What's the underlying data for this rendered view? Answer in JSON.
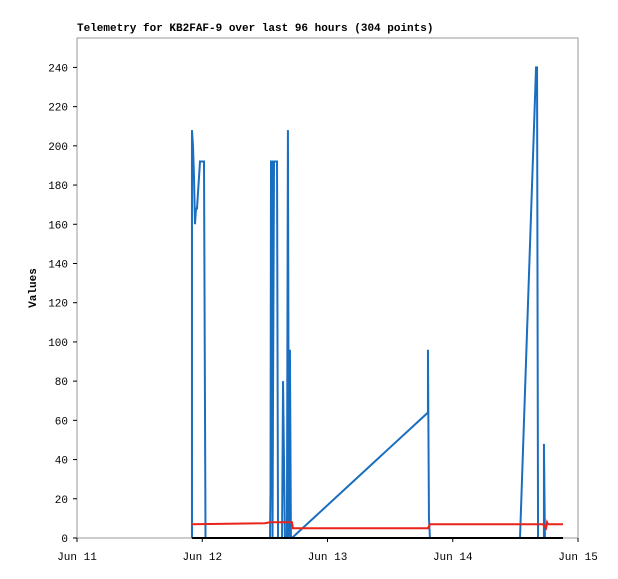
{
  "chart_data": {
    "type": "line",
    "title": "Telemetry for KB2FAF-9 over last 96 hours (304 points)",
    "y_label": "Values",
    "xlim": [
      0,
      4
    ],
    "xticks": [
      {
        "value": 0,
        "label": "Jun 11"
      },
      {
        "value": 1,
        "label": "Jun 12"
      },
      {
        "value": 2,
        "label": "Jun 13"
      },
      {
        "value": 3,
        "label": "Jun 14"
      },
      {
        "value": 4,
        "label": "Jun 15"
      }
    ],
    "ylim": [
      0,
      255
    ],
    "yticks": [
      0,
      20,
      40,
      60,
      80,
      100,
      120,
      140,
      160,
      180,
      200,
      220,
      240
    ],
    "grid": false,
    "series": [
      {
        "color": "#1a6ec0",
        "x": [
          0.918,
          0.918,
          0.926,
          0.934,
          0.942,
          0.95,
          0.958,
          0.982,
          1.014,
          1.02,
          1.026,
          1.541,
          1.545,
          1.549,
          1.557,
          1.561,
          1.565,
          1.573,
          1.597,
          1.605,
          1.637,
          1.645,
          1.66,
          1.676,
          1.684,
          1.692,
          1.7,
          1.708,
          1.716,
          2.802,
          2.802,
          2.81,
          2.818,
          3.537,
          3.665,
          3.673,
          3.681,
          3.728,
          3.728,
          3.736,
          3.88
        ],
        "values": [
          0,
          208,
          200,
          184,
          160,
          168,
          168,
          192,
          192,
          96,
          0,
          0,
          24,
          192,
          192,
          0,
          72,
          192,
          192,
          0,
          0,
          80,
          0,
          0,
          208,
          0,
          96,
          0,
          0,
          64,
          96,
          10,
          0,
          0,
          240,
          240,
          0,
          0,
          48,
          0,
          0
        ]
      },
      {
        "color": "#e8231a",
        "x": [
          0.918,
          1.5,
          1.541,
          1.716,
          1.724,
          2.802,
          2.818,
          3.72,
          3.745,
          3.753,
          3.761,
          3.88
        ],
        "values": [
          7,
          7.5,
          8,
          8,
          5,
          5,
          7,
          7,
          5,
          8,
          7,
          7
        ]
      },
      {
        "color": "#000000",
        "x": [
          0.918,
          3.88
        ],
        "values": [
          0,
          0
        ]
      }
    ]
  }
}
